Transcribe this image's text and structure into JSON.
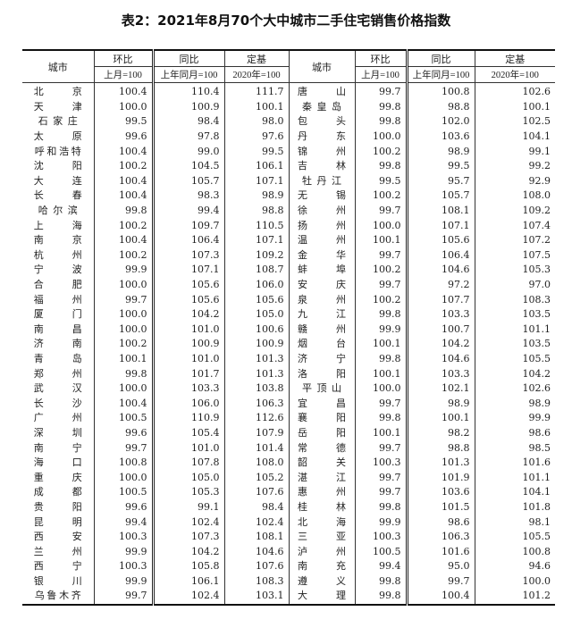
{
  "title": "表2：2021年8月70个大中城市二手住宅销售价格指数",
  "headers": {
    "city": "城市",
    "mom": "环比",
    "mom_base": "上月=100",
    "yoy": "同比",
    "yoy_base": "上年同月=100",
    "fixed": "定基",
    "fixed_base": "2020年=100"
  },
  "left": [
    [
      "北京",
      "100.4",
      "110.4",
      "111.7"
    ],
    [
      "天津",
      "100.0",
      "100.9",
      "100.1"
    ],
    [
      "石家庄",
      "99.5",
      "98.4",
      "98.0"
    ],
    [
      "太原",
      "99.6",
      "97.8",
      "97.6"
    ],
    [
      "呼和浩特",
      "100.4",
      "99.0",
      "99.5"
    ],
    [
      "沈阳",
      "100.2",
      "104.5",
      "106.1"
    ],
    [
      "大连",
      "100.4",
      "105.7",
      "107.1"
    ],
    [
      "长春",
      "100.4",
      "98.3",
      "98.9"
    ],
    [
      "哈尔滨",
      "99.8",
      "99.4",
      "98.8"
    ],
    [
      "上海",
      "100.2",
      "109.7",
      "110.5"
    ],
    [
      "南京",
      "100.4",
      "106.4",
      "107.1"
    ],
    [
      "杭州",
      "100.2",
      "107.3",
      "109.2"
    ],
    [
      "宁波",
      "99.9",
      "107.1",
      "108.7"
    ],
    [
      "合肥",
      "100.0",
      "105.6",
      "106.0"
    ],
    [
      "福州",
      "99.7",
      "105.6",
      "105.6"
    ],
    [
      "厦门",
      "100.0",
      "104.2",
      "105.0"
    ],
    [
      "南昌",
      "100.0",
      "101.0",
      "100.6"
    ],
    [
      "济南",
      "100.2",
      "100.9",
      "100.9"
    ],
    [
      "青岛",
      "100.1",
      "101.0",
      "101.3"
    ],
    [
      "郑州",
      "99.8",
      "101.7",
      "101.3"
    ],
    [
      "武汉",
      "100.0",
      "103.3",
      "103.8"
    ],
    [
      "长沙",
      "100.4",
      "106.0",
      "106.3"
    ],
    [
      "广州",
      "100.5",
      "110.9",
      "112.6"
    ],
    [
      "深圳",
      "99.6",
      "105.4",
      "107.9"
    ],
    [
      "南宁",
      "99.7",
      "101.0",
      "101.4"
    ],
    [
      "海口",
      "100.8",
      "107.8",
      "108.0"
    ],
    [
      "重庆",
      "100.0",
      "105.0",
      "105.2"
    ],
    [
      "成都",
      "100.5",
      "105.3",
      "107.6"
    ],
    [
      "贵阳",
      "99.6",
      "99.1",
      "98.4"
    ],
    [
      "昆明",
      "99.4",
      "102.4",
      "102.4"
    ],
    [
      "西安",
      "100.3",
      "107.3",
      "108.1"
    ],
    [
      "兰州",
      "99.9",
      "104.2",
      "104.6"
    ],
    [
      "西宁",
      "100.3",
      "105.8",
      "107.6"
    ],
    [
      "银川",
      "99.9",
      "106.1",
      "108.3"
    ],
    [
      "乌鲁木齐",
      "99.7",
      "102.4",
      "103.1"
    ]
  ],
  "right": [
    [
      "唐山",
      "99.7",
      "100.8",
      "102.6"
    ],
    [
      "秦皇岛",
      "99.8",
      "98.8",
      "100.1"
    ],
    [
      "包头",
      "99.8",
      "102.0",
      "102.5"
    ],
    [
      "丹东",
      "100.0",
      "103.6",
      "104.1"
    ],
    [
      "锦州",
      "100.2",
      "98.9",
      "99.1"
    ],
    [
      "吉林",
      "99.8",
      "99.5",
      "99.2"
    ],
    [
      "牡丹江",
      "99.5",
      "95.7",
      "92.9"
    ],
    [
      "无锡",
      "100.2",
      "105.7",
      "108.0"
    ],
    [
      "徐州",
      "99.7",
      "108.1",
      "109.2"
    ],
    [
      "扬州",
      "100.0",
      "107.1",
      "107.4"
    ],
    [
      "温州",
      "100.1",
      "105.6",
      "107.2"
    ],
    [
      "金华",
      "99.7",
      "106.4",
      "107.5"
    ],
    [
      "蚌埠",
      "100.2",
      "104.6",
      "105.3"
    ],
    [
      "安庆",
      "99.7",
      "97.2",
      "97.0"
    ],
    [
      "泉州",
      "100.2",
      "107.7",
      "108.3"
    ],
    [
      "九江",
      "99.8",
      "103.3",
      "103.5"
    ],
    [
      "赣州",
      "99.9",
      "100.7",
      "101.1"
    ],
    [
      "烟台",
      "100.1",
      "104.2",
      "103.5"
    ],
    [
      "济宁",
      "99.8",
      "104.6",
      "105.5"
    ],
    [
      "洛阳",
      "100.1",
      "103.3",
      "104.2"
    ],
    [
      "平顶山",
      "100.0",
      "102.1",
      "102.6"
    ],
    [
      "宜昌",
      "99.7",
      "98.9",
      "98.9"
    ],
    [
      "襄阳",
      "99.8",
      "100.1",
      "99.9"
    ],
    [
      "岳阳",
      "100.1",
      "98.2",
      "98.6"
    ],
    [
      "常德",
      "99.7",
      "98.8",
      "98.5"
    ],
    [
      "韶关",
      "100.3",
      "101.3",
      "101.6"
    ],
    [
      "湛江",
      "99.7",
      "101.9",
      "101.1"
    ],
    [
      "惠州",
      "99.7",
      "103.6",
      "104.1"
    ],
    [
      "桂林",
      "99.8",
      "101.5",
      "101.8"
    ],
    [
      "北海",
      "99.9",
      "98.6",
      "98.1"
    ],
    [
      "三亚",
      "100.3",
      "106.3",
      "105.5"
    ],
    [
      "泸州",
      "100.5",
      "101.6",
      "100.8"
    ],
    [
      "南充",
      "99.4",
      "95.0",
      "94.6"
    ],
    [
      "遵义",
      "99.8",
      "99.7",
      "100.0"
    ],
    [
      "大理",
      "99.8",
      "100.4",
      "101.2"
    ]
  ]
}
